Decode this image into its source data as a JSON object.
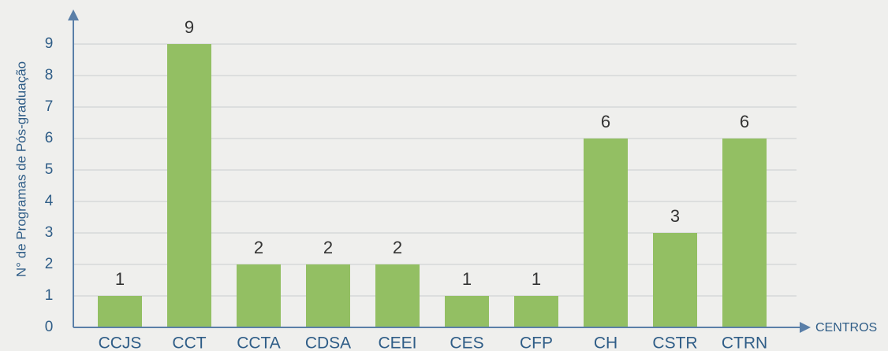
{
  "chart_data": {
    "type": "bar",
    "x_label": "CENTROS",
    "y_label": "N° de Programas de Pós-graduação",
    "categories": [
      "CCJS",
      "CCT",
      "CCTA",
      "CDSA",
      "CEEI",
      "CES",
      "CFP",
      "CH",
      "CSTR",
      "CTRN"
    ],
    "values": [
      1,
      9,
      2,
      2,
      2,
      1,
      1,
      6,
      3,
      6
    ],
    "color": "#93bf63",
    "ylim": [
      0,
      10
    ],
    "yticks": [
      0,
      1,
      2,
      3,
      4,
      5,
      6,
      7,
      8,
      9
    ],
    "grid": true
  }
}
